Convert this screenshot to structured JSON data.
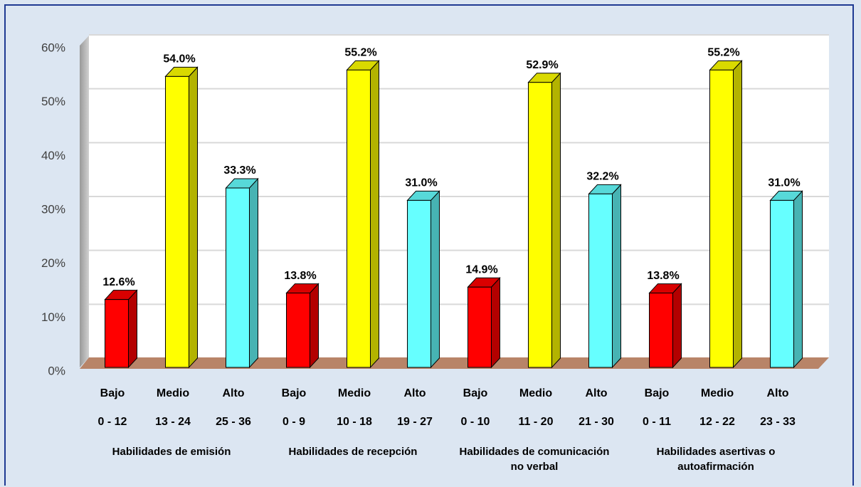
{
  "chart_data": {
    "type": "bar3d",
    "categories": [
      "Bajo",
      "Medio",
      "Alto",
      "Bajo",
      "Medio",
      "Alto",
      "Bajo",
      "Medio",
      "Alto",
      "Bajo",
      "Medio",
      "Alto"
    ],
    "ranges": [
      "0 - 12",
      "13 - 24",
      "25 - 36",
      "0 - 9",
      "10 - 18",
      "19 - 27",
      "0 - 10",
      "11 - 20",
      "21 - 30",
      "0 - 11",
      "12 - 22",
      "23 - 33"
    ],
    "groups": [
      "Habilidades de emisión",
      "Habilidades de recepción",
      "Habilidades de comunicación no verbal",
      "Habilidades asertivas o autoafirmación"
    ],
    "values": [
      12.6,
      54.0,
      33.3,
      13.8,
      55.2,
      31.0,
      14.9,
      52.9,
      32.2,
      13.8,
      55.2,
      31.0
    ],
    "value_labels": [
      "12.6%",
      "54.0%",
      "33.3%",
      "13.8%",
      "55.2%",
      "31.0%",
      "14.9%",
      "52.9%",
      "32.2%",
      "13.8%",
      "55.2%",
      "31.0%"
    ],
    "colors": [
      "#ff0000",
      "#ffff00",
      "#66ffff",
      "#ff0000",
      "#ffff00",
      "#66ffff",
      "#ff0000",
      "#ffff00",
      "#66ffff",
      "#ff0000",
      "#ffff00",
      "#66ffff"
    ],
    "ylim": [
      0,
      60
    ],
    "yticks": [
      {
        "value": 0,
        "label": "0%"
      },
      {
        "value": 10,
        "label": "10%"
      },
      {
        "value": 20,
        "label": "20%"
      },
      {
        "value": 30,
        "label": "30%"
      },
      {
        "value": 40,
        "label": "40%"
      },
      {
        "value": 50,
        "label": "50%"
      },
      {
        "value": 60,
        "label": "60%"
      }
    ],
    "grid": true
  }
}
